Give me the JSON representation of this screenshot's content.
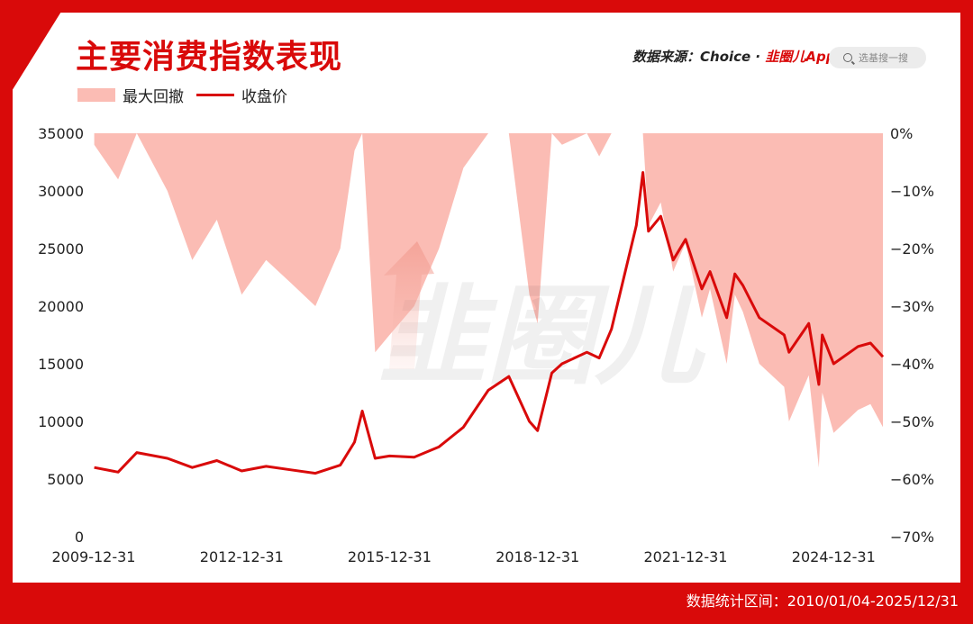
{
  "title": "主要消费指数表现",
  "source": {
    "label": "数据来源：Choice · ",
    "brand": "韭圈儿App"
  },
  "search": {
    "placeholder": "选基搜一搜"
  },
  "footer": {
    "range_text": "数据统计区间：2010/01/04-2025/12/31"
  },
  "watermark": "韭圈儿",
  "colors": {
    "accent": "#d90a0a",
    "drawdown_fill": "#fbbcb4",
    "frame": "#d90a0a"
  },
  "chart_data": {
    "type": "line",
    "legend": [
      "最大回撤",
      "收盘价"
    ],
    "legend_position": "top-left",
    "grid": false,
    "x_ticks": [
      "2009-12-31",
      "2012-12-31",
      "2015-12-31",
      "2018-12-31",
      "2021-12-31",
      "2024-12-31"
    ],
    "y_left_ticks": [
      "35000",
      "30000",
      "25000",
      "20000",
      "15000",
      "10000",
      "5000",
      "0"
    ],
    "y_right_ticks": [
      "0%",
      "-10%",
      "-20%",
      "-30%",
      "-40%",
      "-50%",
      "-60%",
      "-70%"
    ],
    "ylim_left": [
      0,
      35000
    ],
    "ylim_right": [
      -70,
      0
    ],
    "xlim": [
      "2009-12-31",
      "2025-12-31"
    ],
    "series": [
      {
        "name": "收盘价",
        "axis": "left",
        "x": [
          "2010-01-04",
          "2010-06-30",
          "2010-11-15",
          "2011-06-30",
          "2011-12-31",
          "2012-06-30",
          "2012-12-31",
          "2013-06-30",
          "2013-12-31",
          "2014-06-30",
          "2014-12-31",
          "2015-04-15",
          "2015-06-12",
          "2015-09-15",
          "2015-12-31",
          "2016-06-30",
          "2016-12-31",
          "2017-06-30",
          "2017-12-31",
          "2018-06-01",
          "2018-10-31",
          "2018-12-31",
          "2019-04-15",
          "2019-06-30",
          "2019-12-31",
          "2020-03-31",
          "2020-06-30",
          "2020-09-30",
          "2020-12-31",
          "2021-02-18",
          "2021-03-31",
          "2021-06-30",
          "2021-09-30",
          "2021-12-31",
          "2022-04-30",
          "2022-06-30",
          "2022-10-31",
          "2022-12-31",
          "2023-02-28",
          "2023-06-30",
          "2023-12-31",
          "2024-02-05",
          "2024-06-30",
          "2024-09-13",
          "2024-10-08",
          "2024-12-31",
          "2025-06-30",
          "2025-09-30",
          "2025-12-31"
        ],
        "values": [
          6000,
          5600,
          7300,
          6800,
          6000,
          6600,
          5700,
          6100,
          5800,
          5500,
          6200,
          8200,
          10900,
          6800,
          7000,
          6900,
          7800,
          9500,
          12700,
          13900,
          10000,
          9200,
          14200,
          15000,
          16000,
          15500,
          18000,
          22500,
          27000,
          31600,
          26500,
          27800,
          24000,
          25800,
          21500,
          23000,
          19000,
          22800,
          21800,
          19000,
          17500,
          16000,
          18500,
          13200,
          17500,
          15000,
          16500,
          16800,
          15600
        ]
      },
      {
        "name": "最大回撤",
        "axis": "right",
        "unit": "%",
        "x": [
          "2010-01-04",
          "2010-06-30",
          "2010-11-15",
          "2011-06-30",
          "2011-12-31",
          "2012-06-30",
          "2012-12-31",
          "2013-06-30",
          "2013-12-31",
          "2014-06-30",
          "2014-12-31",
          "2015-04-15",
          "2015-06-12",
          "2015-09-15",
          "2015-12-31",
          "2016-06-30",
          "2016-12-31",
          "2017-06-30",
          "2017-12-31",
          "2018-06-01",
          "2018-10-31",
          "2018-12-31",
          "2019-04-15",
          "2019-06-30",
          "2019-12-31",
          "2020-03-31",
          "2020-06-30",
          "2020-09-30",
          "2020-12-31",
          "2021-02-18",
          "2021-03-31",
          "2021-06-30",
          "2021-09-30",
          "2021-12-31",
          "2022-04-30",
          "2022-06-30",
          "2022-10-31",
          "2022-12-31",
          "2023-02-28",
          "2023-06-30",
          "2023-12-31",
          "2024-02-05",
          "2024-06-30",
          "2024-09-13",
          "2024-10-08",
          "2024-12-31",
          "2025-06-30",
          "2025-09-30",
          "2025-12-31"
        ],
        "values": [
          -2,
          -8,
          0,
          -10,
          -22,
          -15,
          -28,
          -22,
          -26,
          -30,
          -20,
          -3,
          0,
          -38,
          -35,
          -30,
          -20,
          -6,
          0,
          0,
          -28,
          -33,
          0,
          -2,
          0,
          -4,
          0,
          0,
          0,
          0,
          -16,
          -12,
          -24,
          -19,
          -32,
          -27,
          -40,
          -28,
          -31,
          -40,
          -44,
          -50,
          -42,
          -58,
          -45,
          -52,
          -48,
          -47,
          -51
        ]
      }
    ]
  }
}
